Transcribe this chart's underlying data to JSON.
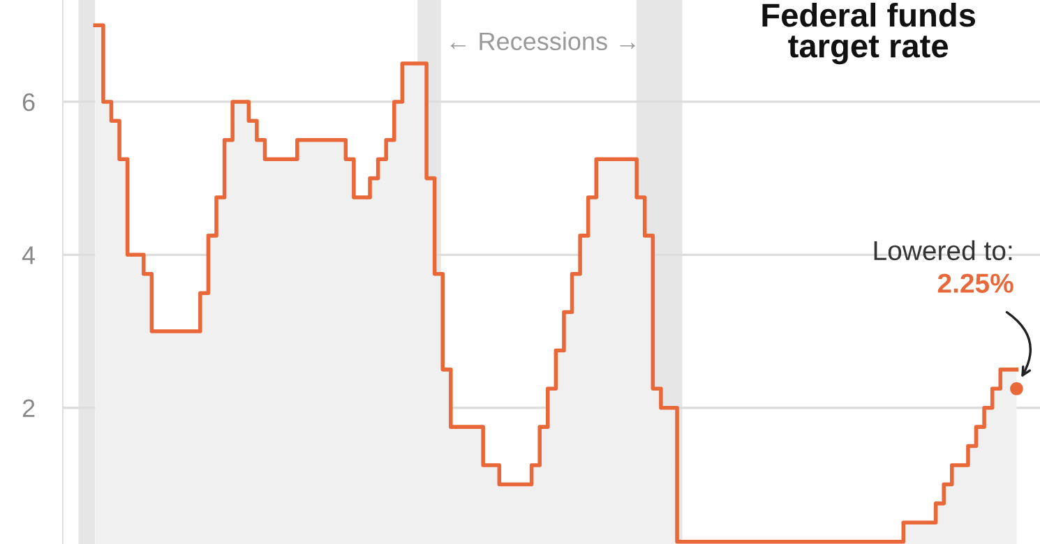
{
  "chart_data": {
    "type": "area",
    "title": "Federal funds target rate",
    "annotations": [
      "← Recessions →",
      "Lowered to:",
      "2.25%"
    ],
    "categories": [
      null,
      null,
      null,
      null,
      null,
      null,
      null,
      null,
      null,
      null,
      null,
      null,
      null,
      null,
      null,
      null,
      null,
      null,
      null,
      null,
      null,
      null,
      null,
      null,
      null,
      null,
      null,
      null,
      null,
      null,
      null,
      null,
      null,
      null,
      null,
      null,
      null,
      null,
      null,
      null,
      null,
      null,
      null,
      null,
      null,
      null,
      null,
      null,
      null,
      null,
      null,
      null,
      null,
      null,
      null,
      null,
      null,
      null,
      null,
      null,
      null,
      null,
      null,
      null,
      null,
      null,
      null,
      null,
      null,
      null,
      null,
      null,
      null,
      null,
      null,
      null,
      null,
      null,
      null,
      null,
      null,
      null,
      null,
      null,
      null,
      null,
      null,
      null,
      null,
      null,
      null,
      null,
      null,
      null,
      null,
      null,
      null,
      null,
      null,
      null,
      null,
      null,
      null,
      null,
      null,
      null,
      null,
      null,
      null,
      null,
      null,
      null,
      null,
      null,
      null
    ],
    "series": [
      {
        "color": "#f0f0f0",
        "values": [
          7.0,
          6.0,
          5.75,
          5.25,
          4.0,
          4.0,
          3.75,
          3.0,
          3.0,
          3.0,
          3.0,
          3.0,
          3.0,
          3.5,
          4.25,
          4.75,
          5.5,
          6.0,
          6.0,
          5.75,
          5.5,
          5.25,
          5.25,
          5.25,
          5.25,
          5.5,
          5.5,
          5.5,
          5.5,
          5.5,
          5.5,
          5.25,
          4.75,
          4.75,
          5.0,
          5.25,
          5.5,
          6.0,
          6.5,
          6.5,
          6.5,
          5.0,
          3.75,
          2.5,
          1.75,
          1.75,
          1.75,
          1.75,
          1.25,
          1.25,
          1.0,
          1.0,
          1.0,
          1.0,
          1.25,
          1.75,
          2.25,
          2.75,
          3.25,
          3.75,
          4.25,
          4.75,
          5.25,
          5.25,
          5.25,
          5.25,
          5.25,
          4.75,
          4.25,
          2.25,
          2.0,
          2.0,
          0.25,
          0.25,
          0.25,
          0.25,
          0.25,
          0.25,
          0.25,
          0.25,
          0.25,
          0.25,
          0.25,
          0.25,
          0.25,
          0.25,
          0.25,
          0.25,
          0.25,
          0.25,
          0.25,
          0.25,
          0.25,
          0.25,
          0.25,
          0.25,
          0.25,
          0.25,
          0.25,
          0.25,
          0.5,
          0.5,
          0.5,
          0.5,
          0.75,
          1.0,
          1.25,
          1.25,
          1.5,
          1.75,
          2.0,
          2.25,
          2.5,
          2.5,
          2.5
        ]
      },
      {
        "type": "step",
        "color": "#e8683a",
        "values": [
          7.0,
          6.0,
          5.75,
          5.25,
          4.0,
          4.0,
          3.75,
          3.0,
          3.0,
          3.0,
          3.0,
          3.0,
          3.0,
          3.5,
          4.25,
          4.75,
          5.5,
          6.0,
          6.0,
          5.75,
          5.5,
          5.25,
          5.25,
          5.25,
          5.25,
          5.5,
          5.5,
          5.5,
          5.5,
          5.5,
          5.5,
          5.25,
          4.75,
          4.75,
          5.0,
          5.25,
          5.5,
          6.0,
          6.5,
          6.5,
          6.5,
          5.0,
          3.75,
          2.5,
          1.75,
          1.75,
          1.75,
          1.75,
          1.25,
          1.25,
          1.0,
          1.0,
          1.0,
          1.0,
          1.25,
          1.75,
          2.25,
          2.75,
          3.25,
          3.75,
          4.25,
          4.75,
          5.25,
          5.25,
          5.25,
          5.25,
          5.25,
          4.75,
          4.25,
          2.25,
          2.0,
          2.0,
          0.25,
          0.25,
          0.25,
          0.25,
          0.25,
          0.25,
          0.25,
          0.25,
          0.25,
          0.25,
          0.25,
          0.25,
          0.25,
          0.25,
          0.25,
          0.25,
          0.25,
          0.25,
          0.25,
          0.25,
          0.25,
          0.25,
          0.25,
          0.25,
          0.25,
          0.25,
          0.25,
          0.25,
          0.5,
          0.5,
          0.5,
          0.5,
          0.75,
          1.0,
          1.25,
          1.25,
          1.5,
          1.75,
          2.0,
          2.25,
          2.5,
          2.5,
          2.5
        ]
      },
      {
        "type": "scatter",
        "color": "#e8683a",
        "marker": "circle",
        "values": [
          null,
          null,
          null,
          null,
          null,
          null,
          null,
          null,
          null,
          null,
          null,
          null,
          null,
          null,
          null,
          null,
          null,
          null,
          null,
          null,
          null,
          null,
          null,
          null,
          null,
          null,
          null,
          null,
          null,
          null,
          null,
          null,
          null,
          null,
          null,
          null,
          null,
          null,
          null,
          null,
          null,
          null,
          null,
          null,
          null,
          null,
          null,
          null,
          null,
          null,
          null,
          null,
          null,
          null,
          null,
          null,
          null,
          null,
          null,
          null,
          null,
          null,
          null,
          null,
          null,
          null,
          null,
          null,
          null,
          null,
          null,
          null,
          null,
          null,
          null,
          null,
          null,
          null,
          null,
          null,
          null,
          null,
          null,
          null,
          null,
          null,
          null,
          null,
          null,
          null,
          null,
          null,
          null,
          null,
          null,
          null,
          null,
          null,
          null,
          null,
          null,
          null,
          null,
          null,
          null,
          null,
          null,
          null,
          null,
          null,
          null,
          null,
          null,
          null,
          2.25
        ]
      }
    ],
    "ylim": [
      0.22,
      7.33
    ],
    "yticks": [
      2,
      4,
      6
    ],
    "grid": "y",
    "tick_labels": "y",
    "line_style": "solid"
  }
}
